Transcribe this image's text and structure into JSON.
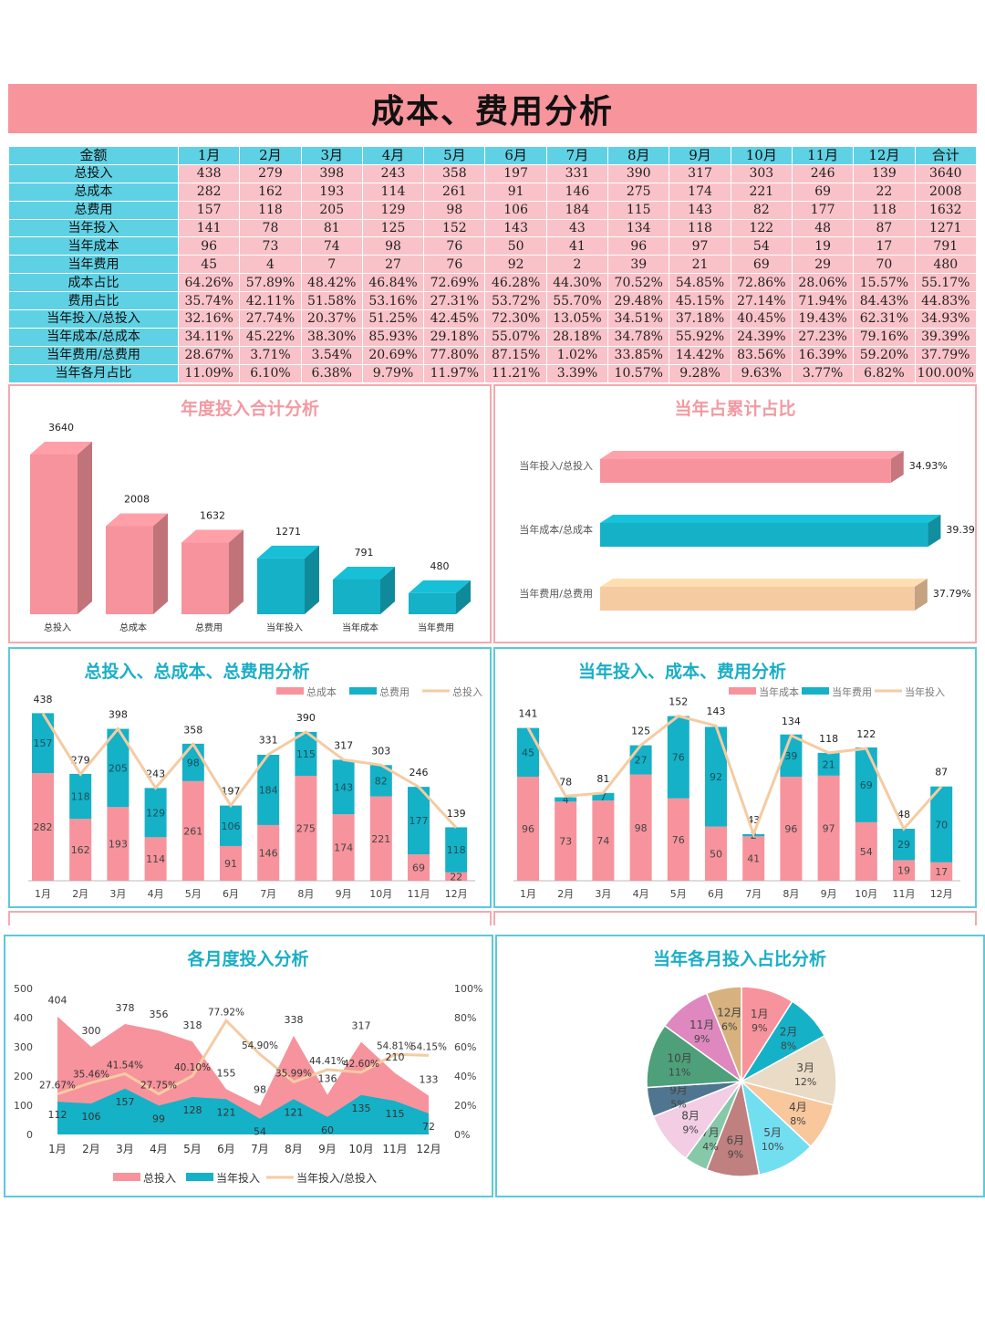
{
  "title": "成本、费用分析",
  "table": {
    "header": [
      "金额",
      "1月",
      "2月",
      "3月",
      "4月",
      "5月",
      "6月",
      "7月",
      "8月",
      "9月",
      "10月",
      "11月",
      "12月",
      "合计"
    ],
    "rows": [
      {
        "label": "总投入",
        "values": [
          "438",
          "279",
          "398",
          "243",
          "358",
          "197",
          "331",
          "390",
          "317",
          "303",
          "246",
          "139",
          "3640"
        ]
      },
      {
        "label": "总成本",
        "values": [
          "282",
          "162",
          "193",
          "114",
          "261",
          "91",
          "146",
          "275",
          "174",
          "221",
          "69",
          "22",
          "2008"
        ]
      },
      {
        "label": "总费用",
        "values": [
          "157",
          "118",
          "205",
          "129",
          "98",
          "106",
          "184",
          "115",
          "143",
          "82",
          "177",
          "118",
          "1632"
        ]
      },
      {
        "label": "当年投入",
        "values": [
          "141",
          "78",
          "81",
          "125",
          "152",
          "143",
          "43",
          "134",
          "118",
          "122",
          "48",
          "87",
          "1271"
        ]
      },
      {
        "label": "当年成本",
        "values": [
          "96",
          "73",
          "74",
          "98",
          "76",
          "50",
          "41",
          "96",
          "97",
          "54",
          "19",
          "17",
          "791"
        ]
      },
      {
        "label": "当年费用",
        "values": [
          "45",
          "4",
          "7",
          "27",
          "76",
          "92",
          "2",
          "39",
          "21",
          "69",
          "29",
          "70",
          "480"
        ]
      },
      {
        "label": "成本占比",
        "values": [
          "64.26%",
          "57.89%",
          "48.42%",
          "46.84%",
          "72.69%",
          "46.28%",
          "44.30%",
          "70.52%",
          "54.85%",
          "72.86%",
          "28.06%",
          "15.57%",
          "55.17%"
        ]
      },
      {
        "label": "费用占比",
        "values": [
          "35.74%",
          "42.11%",
          "51.58%",
          "53.16%",
          "27.31%",
          "53.72%",
          "55.70%",
          "29.48%",
          "45.15%",
          "27.14%",
          "71.94%",
          "84.43%",
          "44.83%"
        ]
      },
      {
        "label": "当年投入/总投入",
        "values": [
          "32.16%",
          "27.74%",
          "20.37%",
          "51.25%",
          "42.45%",
          "72.30%",
          "13.05%",
          "34.51%",
          "37.18%",
          "40.45%",
          "19.43%",
          "62.31%",
          "34.93%"
        ]
      },
      {
        "label": "当年成本/总成本",
        "values": [
          "34.11%",
          "45.22%",
          "38.30%",
          "85.93%",
          "29.18%",
          "55.07%",
          "28.18%",
          "34.78%",
          "55.92%",
          "24.39%",
          "27.23%",
          "79.16%",
          "39.39%"
        ]
      },
      {
        "label": "当年费用/总费用",
        "values": [
          "28.67%",
          "3.71%",
          "3.54%",
          "20.69%",
          "77.80%",
          "87.15%",
          "1.02%",
          "33.85%",
          "14.42%",
          "83.56%",
          "16.39%",
          "59.20%",
          "37.79%"
        ]
      },
      {
        "label": "当年各月占比",
        "values": [
          "11.09%",
          "6.10%",
          "6.38%",
          "9.79%",
          "11.97%",
          "11.21%",
          "3.39%",
          "10.57%",
          "9.28%",
          "9.63%",
          "3.77%",
          "6.82%",
          "100.00%"
        ]
      }
    ]
  },
  "colors": {
    "pink": "#f7939c",
    "cyan": "#15b1c7",
    "peach": "#f5cba2",
    "title": "#f7949c",
    "pinkTitle": "#f39aa2",
    "cyanTitle": "#19aec6"
  },
  "chart_data": [
    {
      "type": "bar",
      "title": "年度投入合计分析",
      "categories": [
        "总投入",
        "总成本",
        "总费用",
        "当年投入",
        "当年成本",
        "当年费用"
      ],
      "values": [
        3640,
        2008,
        1632,
        1271,
        791,
        480
      ],
      "ylim": [
        0,
        3640
      ]
    },
    {
      "type": "bar",
      "orientation": "horizontal",
      "title": "当年占累计占比",
      "categories": [
        "当年投入/总投入",
        "当年成本/总成本",
        "当年费用/总费用"
      ],
      "values": [
        34.93,
        39.39,
        37.79
      ],
      "labels": [
        "34.93%",
        "39.39%",
        "37.79%"
      ]
    },
    {
      "type": "bar",
      "stacked": true,
      "title": "总投入、总成本、总费用分析",
      "categories": [
        "1月",
        "2月",
        "3月",
        "4月",
        "5月",
        "6月",
        "7月",
        "8月",
        "9月",
        "10月",
        "11月",
        "12月"
      ],
      "series": [
        {
          "name": "总成本",
          "values": [
            282,
            162,
            193,
            114,
            261,
            91,
            146,
            275,
            174,
            221,
            69,
            22
          ]
        },
        {
          "name": "总费用",
          "values": [
            157,
            118,
            205,
            129,
            98,
            106,
            184,
            115,
            143,
            82,
            177,
            118
          ]
        },
        {
          "name": "总投入",
          "type": "line",
          "values": [
            438,
            279,
            398,
            243,
            358,
            197,
            331,
            390,
            317,
            303,
            246,
            139
          ]
        }
      ],
      "ylim": [
        0,
        440
      ]
    },
    {
      "type": "bar",
      "stacked": true,
      "title": "当年投入、成本、费用分析",
      "categories": [
        "1月",
        "2月",
        "3月",
        "4月",
        "5月",
        "6月",
        "7月",
        "8月",
        "9月",
        "10月",
        "11月",
        "12月"
      ],
      "series": [
        {
          "name": "当年成本",
          "values": [
            96,
            73,
            74,
            98,
            76,
            50,
            41,
            96,
            97,
            54,
            19,
            17
          ]
        },
        {
          "name": "当年费用",
          "values": [
            45,
            4,
            7,
            27,
            76,
            92,
            2,
            39,
            21,
            69,
            29,
            70
          ]
        },
        {
          "name": "当年投入",
          "type": "line",
          "values": [
            141,
            78,
            81,
            125,
            152,
            143,
            43,
            134,
            118,
            122,
            48,
            87
          ]
        }
      ],
      "ylim": [
        0,
        155
      ]
    },
    {
      "type": "area",
      "title": "各月度投入分析",
      "categories": [
        "1月",
        "2月",
        "3月",
        "4月",
        "5月",
        "6月",
        "7月",
        "8月",
        "9月",
        "10月",
        "11月",
        "12月"
      ],
      "yticks": [
        "500",
        "400",
        "300",
        "200",
        "100",
        "0"
      ],
      "y2ticks": [
        "100%",
        "80%",
        "60%",
        "40%",
        "20%",
        "0%"
      ],
      "series": [
        {
          "name": "总投入",
          "values": [
            404,
            300,
            378,
            356,
            318,
            155,
            98,
            338,
            136,
            317,
            210,
            133
          ]
        },
        {
          "name": "当年投入",
          "values": [
            112,
            106,
            157,
            99,
            128,
            121,
            54,
            121,
            60,
            135,
            115,
            72
          ]
        },
        {
          "name": "当年投入/总投入",
          "axis": "y2",
          "values": [
            27.67,
            35.46,
            41.54,
            27.75,
            40.1,
            77.92,
            54.9,
            35.99,
            44.41,
            42.6,
            54.81,
            54.15
          ],
          "labels": [
            "27.67%",
            "35.46%",
            "41.54%",
            "27.75%",
            "40.10%",
            "77.92%",
            "54.90%",
            "35.99%",
            "44.41%",
            "42.60%",
            "54.81%",
            "54.15%"
          ]
        }
      ],
      "ylim": [
        0,
        500
      ],
      "y2lim": [
        0,
        100
      ]
    },
    {
      "type": "pie",
      "title": "当年各月投入占比分析",
      "slices": [
        {
          "label": "1月",
          "pct": "9%",
          "value": 9,
          "color": "#f7939c"
        },
        {
          "label": "2月",
          "pct": "8%",
          "value": 8,
          "color": "#15b1c7"
        },
        {
          "label": "3月",
          "pct": "12%",
          "value": 12,
          "color": "#eadbc6"
        },
        {
          "label": "4月",
          "pct": "8%",
          "value": 8,
          "color": "#f8c79c"
        },
        {
          "label": "5月",
          "pct": "10%",
          "value": 10,
          "color": "#72dff0"
        },
        {
          "label": "6月",
          "pct": "9%",
          "value": 9,
          "color": "#c08080"
        },
        {
          "label": "7月",
          "pct": "4%",
          "value": 4,
          "color": "#86c9a9"
        },
        {
          "label": "8月",
          "pct": "9%",
          "value": 9,
          "color": "#f2cde3"
        },
        {
          "label": "9月",
          "pct": "5%",
          "value": 5,
          "color": "#4f7590"
        },
        {
          "label": "10月",
          "pct": "11%",
          "value": 11,
          "color": "#4da07a"
        },
        {
          "label": "11月",
          "pct": "9%",
          "value": 9,
          "color": "#de88bf"
        },
        {
          "label": "12月",
          "pct": "6%",
          "value": 6,
          "color": "#d7b27e"
        }
      ]
    }
  ]
}
